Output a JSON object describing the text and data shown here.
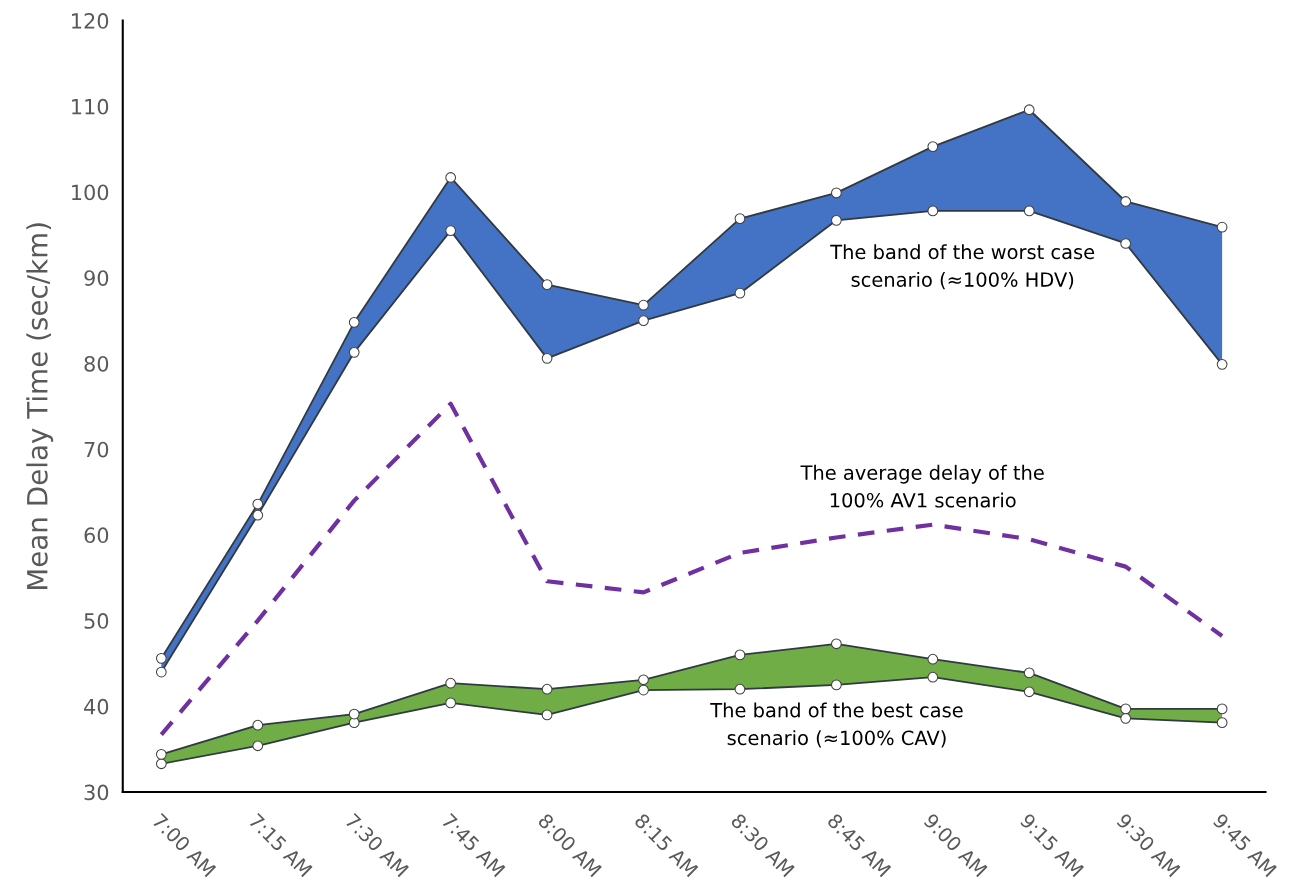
{
  "chart_data": {
    "type": "line",
    "ylabel": "Mean Delay Time (sec/km)",
    "categories": [
      "7:00 AM",
      "7:15 AM",
      "7:30 AM",
      "7:45 AM",
      "8:00 AM",
      "8:15 AM",
      "8:30 AM",
      "8:45 AM",
      "9:00 AM",
      "9:15 AM",
      "9:30 AM",
      "9:45 AM"
    ],
    "series": [
      {
        "color": "#303a40",
        "values": [
          44.0,
          62.3,
          81.3,
          95.5,
          80.6,
          85.0,
          88.2,
          96.7,
          97.8,
          97.8,
          94.0,
          79.9
        ],
        "marker": "circle"
      },
      {
        "type": "area",
        "color": "#4472c4",
        "values": [
          45.6,
          63.6,
          84.8,
          101.7,
          89.2,
          86.8,
          96.9,
          99.9,
          105.3,
          109.6,
          98.9,
          95.9
        ],
        "marker": "circle"
      },
      {
        "color": "#7030a0",
        "values": [
          36.7,
          50.0,
          64.0,
          75.3,
          54.6,
          53.3,
          57.9,
          59.7,
          61.2,
          59.5,
          56.3,
          48.2
        ],
        "line_style": "dashed"
      },
      {
        "color": "#303a40",
        "values": [
          33.3,
          35.4,
          38.1,
          40.4,
          39.0,
          41.9,
          42.0,
          42.5,
          43.4,
          41.7,
          38.6,
          38.1
        ],
        "marker": "circle"
      },
      {
        "type": "area",
        "color": "#70ad47",
        "values": [
          34.4,
          37.8,
          39.1,
          42.7,
          42.0,
          43.1,
          46.0,
          47.3,
          45.5,
          43.9,
          39.7,
          39.7
        ],
        "marker": "circle"
      }
    ],
    "annotations": [
      "The band of the worst case\nscenario (≈100% HDV)",
      "The average delay of the\n100% AV1 scenario",
      "The band of the best case\nscenario (≈100% CAV)"
    ],
    "ylim": [
      30,
      120
    ],
    "yticks": [
      30,
      40,
      50,
      60,
      70,
      80,
      90,
      100,
      110,
      120
    ]
  }
}
